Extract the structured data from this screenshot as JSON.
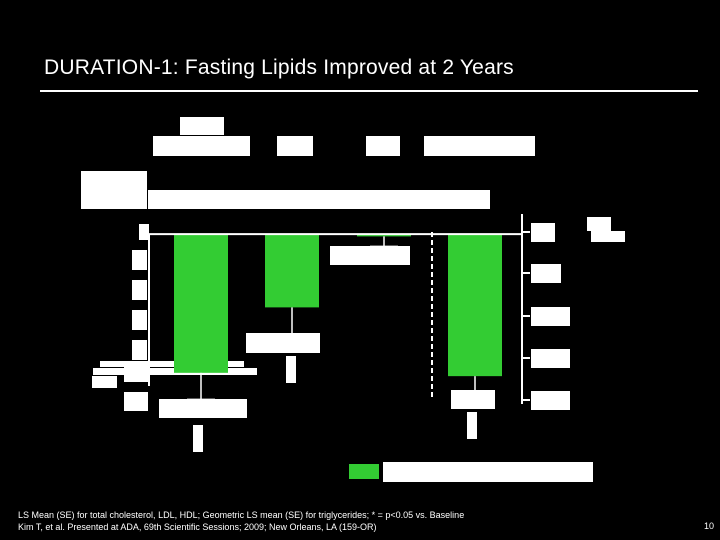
{
  "title": "DURATION-1: Fasting Lipids Improved at 2 Years",
  "footnote_line1": "LS Mean (SE) for total cholesterol, LDL, HDL; Geometric LS mean (SE) for triglycerides; * = p<0.05 vs. Baseline",
  "footnote_line2": "Kim T, et al. Presented at ADA, 69th Scientific Sessions; 2009; New Orleans, LA (159-OR)",
  "page_number": "10",
  "colors": {
    "bar": "#33cc33",
    "background": "#000000",
    "text": "#ffffff"
  },
  "chart_data": {
    "type": "bar",
    "categories": [
      "",
      "",
      "",
      ""
    ],
    "series": [
      {
        "values": [
          -12.5,
          -6.6,
          -0.2,
          -12.8
        ],
        "errors": [
          2.4,
          3.2,
          0.9,
          2.4
        ]
      }
    ],
    "ylim": [
      -20,
      2
    ],
    "grid": false,
    "legend": "bottom-right"
  }
}
